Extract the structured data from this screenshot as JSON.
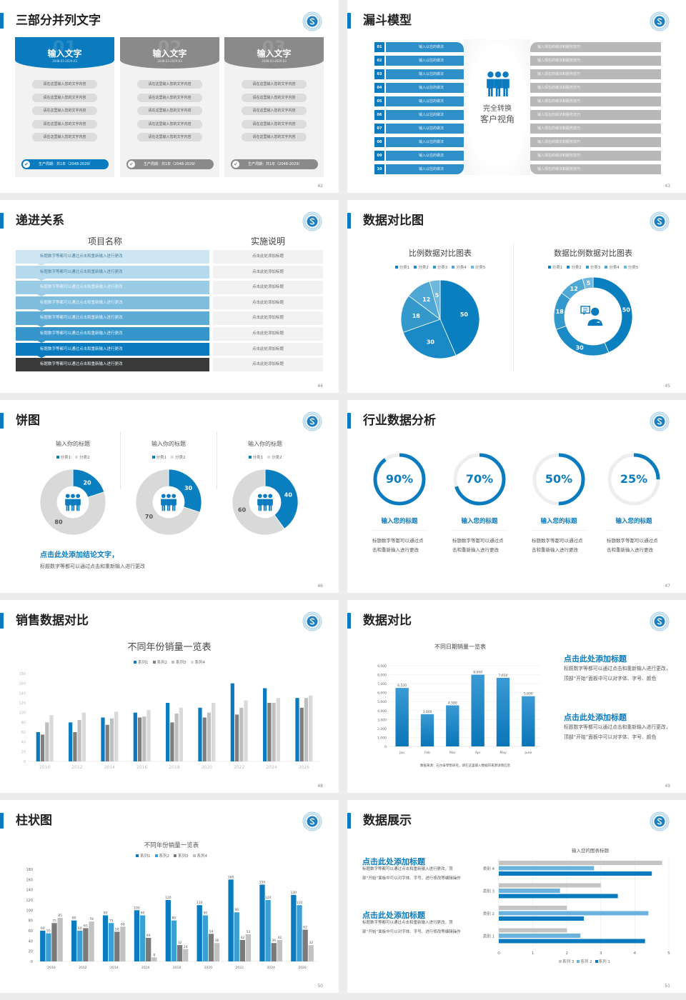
{
  "colors": {
    "accent": "#0a7bbf",
    "gray": "#8a8a8a",
    "light_gray": "#dcdcdc",
    "dark": "#3a3a3a"
  },
  "slides": [
    {
      "page": "42",
      "title": "三部分并列文字",
      "cards": [
        {
          "num": "01",
          "title": "输入文字",
          "date": "2048.03-2029.03",
          "items": [
            "请在这里输入您的文字内容",
            "请在这里输入您的文字内容",
            "请在这里输入您的文字内容",
            "请在这里输入您的文字内容",
            "请在这里输入您的文字内容"
          ],
          "footer": "生产周期：共1年（2048-2029）",
          "active": true
        },
        {
          "num": "02",
          "title": "输入文字",
          "date": "2048.03-2029.03",
          "items": [
            "请在这里输入您的文字内容",
            "请在这里输入您的文字内容",
            "请在这里输入您的文字内容",
            "请在这里输入您的文字内容",
            "请在这里输入您的文字内容"
          ],
          "footer": "生产周期：共1年（2048-2029）",
          "active": false
        },
        {
          "num": "03",
          "title": "输入文字",
          "date": "2048.03-2029.03",
          "items": [
            "请在这里输入您的文字内容",
            "请在这里输入您的文字内容",
            "请在这里输入您的文字内容",
            "请在这里输入您的文字内容",
            "请在这里输入您的文字内容"
          ],
          "footer": "生产周期：共1年（2048-2029）",
          "active": false
        }
      ]
    },
    {
      "page": "43",
      "title": "漏斗模型",
      "left": [
        {
          "n": "01",
          "text": "输入以往的做法"
        },
        {
          "n": "02",
          "text": "输入以往的做法"
        },
        {
          "n": "03",
          "text": "输入以往的做法"
        },
        {
          "n": "04",
          "text": "输入以往的做法"
        },
        {
          "n": "05",
          "text": "输入以往的做法"
        },
        {
          "n": "06",
          "text": "输入以往的做法"
        },
        {
          "n": "07",
          "text": "输入以往的做法"
        },
        {
          "n": "08",
          "text": "输入以往的做法"
        },
        {
          "n": "09",
          "text": "输入以往的做法"
        },
        {
          "n": "10",
          "text": "输入以往的做法"
        }
      ],
      "right": [
        "输入现在的做法和服务技巧",
        "输入现在的做法和服务技巧",
        "输入现在的做法和服务技巧",
        "输入现在的做法和服务技巧",
        "输入现在的做法和服务技巧",
        "输入现在的做法和服务技巧",
        "输入现在的做法和服务技巧",
        "输入现在的做法和服务技巧",
        "输入现在的做法和服务技巧",
        "输入现在的做法和服务技巧"
      ],
      "center": [
        "完全转换",
        "客户视角"
      ],
      "icon": "people-group-icon"
    },
    {
      "page": "44",
      "title": "递进关系",
      "headers": [
        "项目名称",
        "实施说明"
      ],
      "rows": [
        {
          "a": "标题数字等都可以通过点击和重新输入进行更改",
          "b": "点击此处添加标题",
          "color": "#cde6f2"
        },
        {
          "a": "标题数字等都可以通过点击和重新输入进行更改",
          "b": "点击此处添加标题",
          "color": "#b5daee"
        },
        {
          "a": "标题数字等都可以通过点击和重新输入进行更改",
          "b": "点击此处添加标题",
          "color": "#9bcce6"
        },
        {
          "a": "标题数字等都可以通过点击和重新输入进行更改",
          "b": "点击此处添加标题",
          "color": "#7fbddf"
        },
        {
          "a": "标题数字等都可以通过点击和重新输入进行更改",
          "b": "点击此处添加标题",
          "color": "#5eabd6"
        },
        {
          "a": "标题数字等都可以通过点击和重新输入进行更改",
          "b": "点击此处添加标题",
          "color": "#3696cb"
        },
        {
          "a": "标题数字等都可以通过点击和重新输入进行更改",
          "b": "点击此处添加标题",
          "color": "#0a7bbf"
        },
        {
          "a": "标题数字等都可以通过点击和重新输入进行更改",
          "b": "点击此处添加标题",
          "color": "#3a3a3a"
        }
      ]
    },
    {
      "page": "45",
      "title": "数据对比图"
    },
    {
      "page": "46",
      "title": "饼图",
      "conclusion": "点击此处添加结论文字，",
      "desc": "标题数字等都可以通过点击和重新输入进行更改",
      "icon": "people-group-icon"
    },
    {
      "page": "47",
      "title": "行业数据分析",
      "items": [
        {
          "percent": 90,
          "label": "90%",
          "title": "输入您的标题",
          "desc": "标题数字等都可以通过点击和重新输入进行更改"
        },
        {
          "percent": 70,
          "label": "70%",
          "title": "输入您的标题",
          "desc": "标题数字等都可以通过点击和重新输入进行更改"
        },
        {
          "percent": 50,
          "label": "50%",
          "title": "输入您的标题",
          "desc": "标题数字等都可以通过点击和重新输入进行更改"
        },
        {
          "percent": 25,
          "label": "25%",
          "title": "输入您的标题",
          "desc": "标题数字等都可以通过点击和重新输入进行更改"
        }
      ]
    },
    {
      "page": "48",
      "title": "销售数据对比"
    },
    {
      "page": "49",
      "title": "数据对比",
      "source": "数据来源：石尔泰零售研究，请在这里输入数据的来源详情信息",
      "blocks": [
        {
          "title": "点击此处添加标题",
          "desc": "标题数字等都可以通过点击和重新输入进行更改，顶部“开始”面板中可以对字体、字号、颜色"
        },
        {
          "title": "点击此处添加标题",
          "desc": "标题数字等都可以通过点击和重新输入进行更改，顶部“开始”面板中可以对字体、字号、颜色"
        }
      ]
    },
    {
      "page": "50",
      "title": "柱状图"
    },
    {
      "page": "51",
      "title": "数据展示",
      "blocks": [
        {
          "title": "点击此处添加标题",
          "desc": "标题数字等都可以通过点击和重新输入进行更改，顶部“开始”面板中可以对字体、字号、进行修改等编辑操作"
        },
        {
          "title": "点击此处添加标题",
          "desc": "标题数字等都可以通过点击和重新输入进行更改，顶部“开始”面板中可以对字体、字号、进行修改等编辑操作"
        }
      ]
    }
  ],
  "chart_data": [
    {
      "slide": "45",
      "type": "pie",
      "title": "比例数据对比图表",
      "categories": [
        "分类1",
        "分类2",
        "分类3",
        "分类4",
        "分类5"
      ],
      "values": [
        50,
        30,
        18,
        12,
        5
      ],
      "colors": [
        "#0a7fc0",
        "#1a8ac6",
        "#3398cc",
        "#4ea7d4",
        "#6db8dc"
      ],
      "legend": "top"
    },
    {
      "slide": "45",
      "type": "pie",
      "donut": true,
      "title": "数据比例数据对比图表",
      "categories": [
        "分类1",
        "分类2",
        "分类3",
        "分类4",
        "分类5"
      ],
      "values": [
        50,
        30,
        18,
        12,
        5
      ],
      "colors": [
        "#0a7fc0",
        "#1a8ac6",
        "#3398cc",
        "#4ea7d4",
        "#6db8dc"
      ],
      "legend": "top",
      "icon": "customer-service-icon"
    },
    {
      "slide": "46",
      "type": "pie",
      "donut": true,
      "title": "输入你的标题",
      "categories": [
        "分类1",
        "分类2"
      ],
      "values": [
        20,
        80
      ],
      "colors": [
        "#0a7fc0",
        "#d9d9d9"
      ],
      "legend": "top"
    },
    {
      "slide": "46",
      "type": "pie",
      "donut": true,
      "title": "输入你的标题",
      "categories": [
        "分类1",
        "分类2"
      ],
      "values": [
        30,
        70
      ],
      "colors": [
        "#0a7fc0",
        "#d9d9d9"
      ],
      "legend": "top"
    },
    {
      "slide": "46",
      "type": "pie",
      "donut": true,
      "title": "输入你的标题",
      "categories": [
        "分类1",
        "分类2"
      ],
      "values": [
        40,
        60
      ],
      "colors": [
        "#0a7fc0",
        "#d9d9d9"
      ],
      "legend": "top"
    },
    {
      "slide": "48",
      "type": "bar",
      "title": "不同年份销量一览表",
      "categories": [
        "2010",
        "2012",
        "2014",
        "2016",
        "2018",
        "2020",
        "2022",
        "2024",
        "2026"
      ],
      "series": [
        {
          "name": "系列1",
          "values": [
            60,
            80,
            90,
            100,
            120,
            110,
            160,
            150,
            130
          ],
          "color": "#0a7bbf"
        },
        {
          "name": "系列2",
          "values": [
            55,
            60,
            75,
            90,
            80,
            90,
            96,
            120,
            110
          ],
          "color": "#7f7f7f"
        },
        {
          "name": "系列3",
          "values": [
            80,
            85,
            88,
            92,
            98,
            100,
            110,
            120,
            130
          ],
          "color": "#bfbfbf"
        },
        {
          "name": "系列4",
          "values": [
            95,
            100,
            102,
            105,
            110,
            120,
            125,
            130,
            135
          ],
          "color": "#dadada"
        }
      ],
      "ylim": [
        0,
        180
      ],
      "yticks": [
        "0",
        "20",
        "40",
        "60",
        "80",
        "100",
        "120",
        "140",
        "160",
        "180"
      ],
      "legend": "top",
      "grid": false
    },
    {
      "slide": "49",
      "type": "bar",
      "title": "不同日期销量一览表",
      "categories": [
        "Jan",
        "Feb",
        "Mar",
        "Apr",
        "May",
        "June"
      ],
      "values": [
        6520,
        3600,
        4580,
        8000,
        7650,
        5600
      ],
      "labels": [
        "6,520",
        "3,600",
        "4,580",
        "8,000",
        "7,650",
        "5,600"
      ],
      "color": "#0a7bbf",
      "ylim": [
        0,
        9000
      ],
      "yticks": [
        "0",
        "1,000",
        "2,000",
        "3,000",
        "4,000",
        "5,000",
        "6,000",
        "7,000",
        "8,000",
        "9,000"
      ],
      "grid": true
    },
    {
      "slide": "50",
      "type": "bar",
      "title": "不同年份销量一览表",
      "categories": [
        "2010",
        "2012",
        "2014",
        "2016",
        "2018",
        "2020",
        "2022",
        "2024",
        "2026"
      ],
      "series": [
        {
          "name": "系列1",
          "values": [
            60,
            80,
            90,
            100,
            120,
            110,
            160,
            150,
            130
          ],
          "color": "#0a7bbf"
        },
        {
          "name": "系列2",
          "values": [
            55,
            60,
            75,
            90,
            80,
            90,
            96,
            120,
            110
          ],
          "color": "#3a9fd4"
        },
        {
          "name": "系列3",
          "values": [
            75,
            65,
            58,
            46,
            32,
            54,
            42,
            36,
            62
          ],
          "color": "#7a7a7a"
        },
        {
          "name": "系列4",
          "values": [
            85,
            78,
            68,
            8,
            24,
            36,
            53,
            42,
            32
          ],
          "color": "#c2c2c2"
        }
      ],
      "ylim": [
        0,
        180
      ],
      "yticks": [
        "0",
        "20",
        "40",
        "60",
        "80",
        "100",
        "120",
        "140",
        "160",
        "180"
      ],
      "legend": "top",
      "data_labels": true
    },
    {
      "slide": "51",
      "type": "bar",
      "orientation": "horizontal",
      "title": "输入您的图表标题",
      "categories": [
        "类别 1",
        "类别 2",
        "类别 3",
        "类别 4"
      ],
      "series": [
        {
          "name": "系列 1",
          "values": [
            4.3,
            2.5,
            3.5,
            4.5
          ],
          "color": "#0a7bbf"
        },
        {
          "name": "系列 2",
          "values": [
            2.4,
            4.4,
            1.8,
            2.8
          ],
          "color": "#6bb3dc"
        },
        {
          "name": "系列 3",
          "values": [
            2,
            2,
            3,
            4.8
          ],
          "color": "#c4c4c4"
        }
      ],
      "xlim": [
        0,
        5
      ],
      "xticks": [
        "0",
        "1",
        "2",
        "3",
        "4",
        "5"
      ],
      "legend": "bottom",
      "grid": true
    }
  ]
}
